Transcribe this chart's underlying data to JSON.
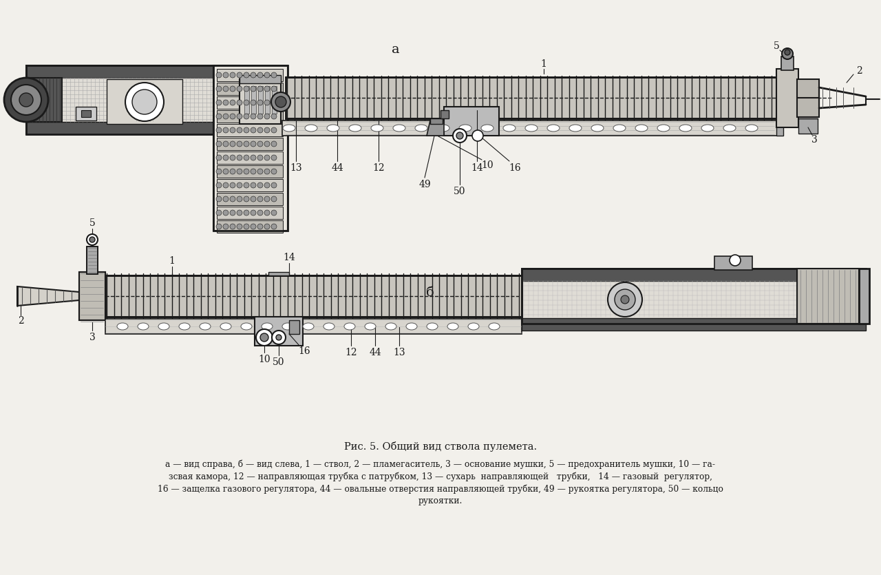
{
  "bg_color": "#f2f0eb",
  "ink_color": "#1a1a1a",
  "title_fig": "Рис. 5. Общий вид ствола пулемета.",
  "caption_line1": "а — вид справа, б — вид слева, 1 — ствол, 2 — пламегаситель, 3 — основание мушки, 5 — предохранитель мушки, 10 — га-",
  "caption_line2": "зсвая камора, 12 — направляющая трубка с патрубком, 13 — сухарь  направляющей   трубки,   14 — газовый  регулятор,",
  "caption_line3": "16 — защелка газового регулятора, 44 — овальные отверстия направляющей трубки, 49 — рукоятка регулятора, 50 — кольцо",
  "caption_line4": "рукоятки.",
  "label_a": "а",
  "label_b": "б"
}
